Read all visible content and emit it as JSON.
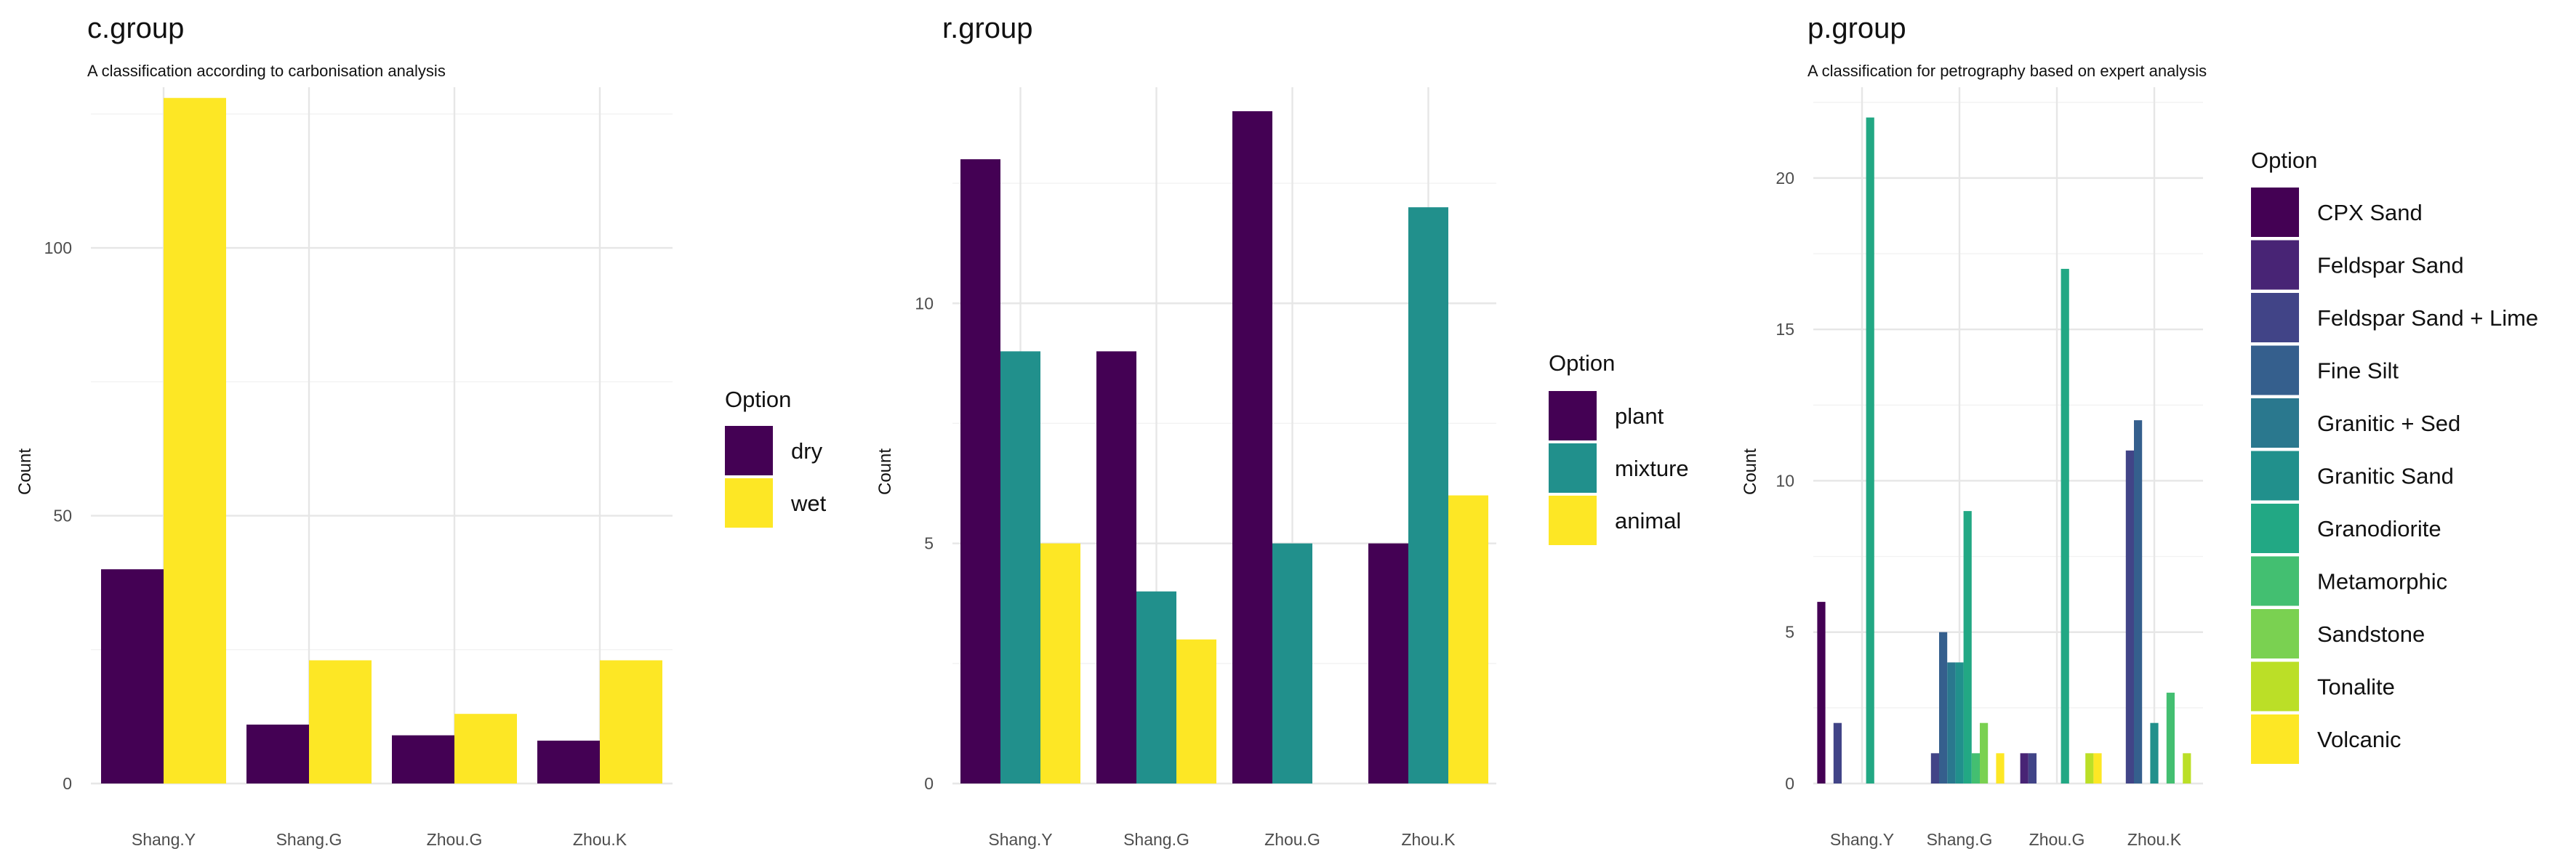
{
  "chart_data": [
    {
      "type": "bar",
      "title": "c.group",
      "subtitle": "A classification according to carbonisation analysis",
      "xlabel": "",
      "ylabel": "Count",
      "categories": [
        "Shang.Y",
        "Shang.G",
        "Zhou.G",
        "Zhou.K"
      ],
      "yticks": [
        0,
        50,
        100
      ],
      "ylim": [
        0,
        130
      ],
      "grid": true,
      "legend": {
        "title": "Option",
        "position": "right"
      },
      "series": [
        {
          "name": "dry",
          "color": "#440154",
          "values": [
            40,
            11,
            9,
            8
          ]
        },
        {
          "name": "wet",
          "color": "#FDE725",
          "values": [
            128,
            23,
            13,
            23
          ]
        }
      ]
    },
    {
      "type": "bar",
      "title": "r.group",
      "subtitle": "",
      "xlabel": "",
      "ylabel": "Count",
      "categories": [
        "Shang.Y",
        "Shang.G",
        "Zhou.G",
        "Zhou.K"
      ],
      "yticks": [
        0,
        5,
        10
      ],
      "ylim": [
        0,
        14.5
      ],
      "grid": true,
      "legend": {
        "title": "Option",
        "position": "right"
      },
      "series": [
        {
          "name": "plant",
          "color": "#440154",
          "values": [
            13,
            9,
            14,
            5
          ]
        },
        {
          "name": "mixture",
          "color": "#21908C",
          "values": [
            9,
            4,
            5,
            12
          ]
        },
        {
          "name": "animal",
          "color": "#FDE725",
          "values": [
            5,
            3,
            null,
            6
          ]
        }
      ]
    },
    {
      "type": "bar",
      "title": "p.group",
      "subtitle": "A classification for petrography based on expert analysis",
      "xlabel": "",
      "ylabel": "Count",
      "categories": [
        "Shang.Y",
        "Shang.G",
        "Zhou.G",
        "Zhou.K"
      ],
      "yticks": [
        0,
        5,
        10,
        15,
        20
      ],
      "ylim": [
        0,
        23
      ],
      "grid": true,
      "legend": {
        "title": "Option",
        "position": "right"
      },
      "series": [
        {
          "name": "CPX Sand",
          "color": "#440154",
          "values": [
            6,
            null,
            null,
            null
          ]
        },
        {
          "name": "Feldspar Sand",
          "color": "#482475",
          "values": [
            null,
            null,
            1,
            null
          ]
        },
        {
          "name": "Feldspar Sand + Lime",
          "color": "#414487",
          "values": [
            2,
            1,
            1,
            11
          ]
        },
        {
          "name": "Fine Silt",
          "color": "#355F8D",
          "values": [
            null,
            5,
            null,
            12
          ]
        },
        {
          "name": "Granitic + Sed",
          "color": "#2A788E",
          "values": [
            null,
            4,
            null,
            null
          ]
        },
        {
          "name": "Granitic Sand",
          "color": "#21908C",
          "values": [
            null,
            4,
            null,
            2
          ]
        },
        {
          "name": "Granodiorite",
          "color": "#22A884",
          "values": [
            22,
            9,
            17,
            null
          ]
        },
        {
          "name": "Metamorphic",
          "color": "#43BF71",
          "values": [
            null,
            1,
            null,
            3
          ]
        },
        {
          "name": "Sandstone",
          "color": "#7AD151",
          "values": [
            null,
            2,
            null,
            null
          ]
        },
        {
          "name": "Tonalite",
          "color": "#BBDF27",
          "values": [
            null,
            null,
            1,
            1
          ]
        },
        {
          "name": "Volcanic",
          "color": "#FDE725",
          "values": [
            null,
            1,
            1,
            null
          ]
        }
      ]
    }
  ]
}
